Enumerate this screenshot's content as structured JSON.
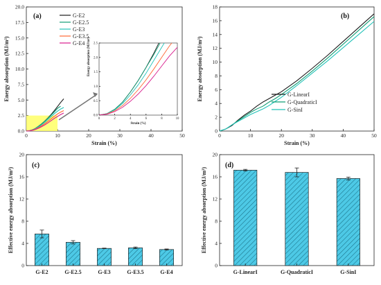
{
  "chart_data": [
    {
      "id": "a",
      "panel_label": "(a)",
      "type": "line",
      "xlabel": "Strain (%)",
      "ylabel": "Energy absorption (MJ/m³)",
      "xlim": [
        0,
        50
      ],
      "ylim": [
        0,
        20
      ],
      "xticks": [
        0,
        10,
        20,
        30,
        40,
        50
      ],
      "yticks": [
        0.0,
        2.5,
        5.0,
        7.5,
        10.0,
        12.5,
        15.0,
        17.5,
        20.0
      ],
      "ytick_labels": [
        "0.0",
        "2.5",
        "5.0",
        "7.5",
        "10.0",
        "12.5",
        "15.0",
        "17.5",
        "20.0"
      ],
      "grid": false,
      "legend_position": "top-left",
      "highlight_region": {
        "x": [
          0,
          10
        ],
        "y": [
          0,
          2.5
        ],
        "color": "#ffff66"
      },
      "series": [
        {
          "name": "G-E2",
          "color": "#1a1a1a",
          "x": [
            0,
            1,
            2,
            3,
            4,
            5,
            6,
            7,
            8,
            9,
            10,
            11,
            12
          ],
          "y": [
            0,
            0.05,
            0.2,
            0.45,
            0.8,
            1.2,
            1.65,
            2.15,
            2.7,
            3.3,
            3.95,
            4.6,
            5.2
          ]
        },
        {
          "name": "G-E2.5",
          "color": "#0f9d74",
          "x": [
            0,
            1,
            2,
            3,
            4,
            5,
            6,
            7,
            8,
            9,
            10,
            11
          ],
          "y": [
            0,
            0.05,
            0.2,
            0.45,
            0.8,
            1.2,
            1.65,
            2.1,
            2.6,
            3.1,
            3.65,
            4.0
          ]
        },
        {
          "name": "G-E3",
          "color": "#22c2b8",
          "x": [
            0,
            1,
            2,
            3,
            4,
            5,
            6,
            7,
            8,
            9,
            10,
            11,
            12
          ],
          "y": [
            0,
            0.05,
            0.18,
            0.4,
            0.7,
            1.05,
            1.45,
            1.9,
            2.35,
            2.8,
            3.2,
            3.55,
            3.8
          ]
        },
        {
          "name": "G-E3.5",
          "color": "#ff6633",
          "x": [
            0,
            1,
            2,
            3,
            4,
            5,
            6,
            7,
            8,
            9,
            10,
            11,
            12
          ],
          "y": [
            0,
            0.04,
            0.15,
            0.33,
            0.58,
            0.88,
            1.22,
            1.6,
            2.0,
            2.4,
            2.75,
            3.05,
            3.3
          ]
        },
        {
          "name": "G-E4",
          "color": "#d81b8c",
          "x": [
            0,
            1,
            2,
            3,
            4,
            5,
            6,
            7,
            8,
            9,
            10,
            11,
            12
          ],
          "y": [
            0,
            0.03,
            0.12,
            0.27,
            0.48,
            0.73,
            1.02,
            1.35,
            1.7,
            2.05,
            2.35,
            2.65,
            2.9
          ]
        }
      ],
      "inset": {
        "xlabel": "Strain (%)",
        "ylabel": "Energy absorption (MJ/m³)",
        "xlim": [
          0,
          10
        ],
        "ylim": [
          0,
          2.5
        ],
        "xticks": [
          0,
          2,
          4,
          6,
          8,
          10
        ],
        "yticks": [
          0.0,
          0.5,
          1.0,
          1.5,
          2.0,
          2.5
        ],
        "ytick_labels": [
          "0.0",
          "0.5",
          "1.0",
          "1.5",
          "2.0",
          "2.5"
        ]
      }
    },
    {
      "id": "b",
      "panel_label": "(b)",
      "type": "line",
      "xlabel": "Strain (%)",
      "ylabel": "Energy absorption (MJ/m³)",
      "xlim": [
        0,
        50
      ],
      "ylim": [
        0,
        18
      ],
      "xticks": [
        0,
        10,
        20,
        30,
        40,
        50
      ],
      "yticks": [
        0,
        2,
        4,
        6,
        8,
        10,
        12,
        14,
        16,
        18
      ],
      "ytick_labels": [
        "0",
        "2",
        "4",
        "6",
        "8",
        "10",
        "12",
        "14",
        "16",
        "18"
      ],
      "grid": false,
      "legend_position": "center-right",
      "series": [
        {
          "name": "G-LinearI",
          "color": "#1a1a1a",
          "x": [
            0,
            2,
            4,
            6,
            8,
            10,
            12,
            14,
            16,
            18,
            20,
            25,
            30,
            35,
            40,
            45,
            50
          ],
          "y": [
            0,
            0.3,
            0.8,
            1.6,
            2.3,
            2.9,
            3.6,
            4.2,
            4.7,
            5.2,
            5.7,
            7.3,
            9.1,
            11.0,
            13.0,
            15.0,
            17.0
          ]
        },
        {
          "name": "G-QuadraticI",
          "color": "#0f9d74",
          "x": [
            0,
            2,
            4,
            6,
            8,
            10,
            12,
            14,
            16,
            18,
            20,
            25,
            30,
            35,
            40,
            45,
            50
          ],
          "y": [
            0,
            0.3,
            0.9,
            1.5,
            2.1,
            2.7,
            3.2,
            3.6,
            4.2,
            4.7,
            5.3,
            6.9,
            8.7,
            10.6,
            12.6,
            14.6,
            16.6
          ]
        },
        {
          "name": "G-SinI",
          "color": "#22c2b8",
          "x": [
            0,
            2,
            4,
            6,
            8,
            10,
            12,
            14,
            16,
            18,
            20,
            25,
            30,
            35,
            40,
            45,
            50
          ],
          "y": [
            0,
            0.3,
            0.9,
            1.4,
            1.9,
            2.4,
            2.8,
            3.2,
            3.7,
            4.3,
            4.9,
            6.6,
            8.4,
            10.2,
            12.1,
            14.0,
            15.9
          ]
        }
      ]
    },
    {
      "id": "c",
      "panel_label": "(c)",
      "type": "bar",
      "ylabel": "Effective energy absorption (MJ/m³)",
      "ylim": [
        0,
        20
      ],
      "yticks": [
        0,
        4,
        8,
        12,
        16,
        20
      ],
      "ytick_labels": [
        "0",
        "4",
        "8",
        "12",
        "16",
        "20"
      ],
      "grid": false,
      "bar_color": "#4dc9e6",
      "hatch": "diagonal",
      "categories": [
        "G-E2",
        "G-E2.5",
        "G-E3",
        "G-E3.5",
        "G-E4"
      ],
      "values": [
        5.7,
        4.2,
        3.1,
        3.2,
        2.9
      ],
      "errors": [
        0.7,
        0.3,
        0.05,
        0.15,
        0.1
      ]
    },
    {
      "id": "d",
      "panel_label": "(d)",
      "type": "bar",
      "ylabel": "Effective energy absorption (MJ/m³)",
      "ylim": [
        0,
        20
      ],
      "yticks": [
        0,
        4,
        8,
        12,
        16,
        20
      ],
      "ytick_labels": [
        "0",
        "4",
        "8",
        "12",
        "16",
        "20"
      ],
      "grid": false,
      "bar_color": "#4dc9e6",
      "hatch": "diagonal",
      "categories": [
        "G-LinearI",
        "G-QuadraticI",
        "G-SinI"
      ],
      "values": [
        17.2,
        16.8,
        15.7
      ],
      "errors": [
        0.15,
        0.8,
        0.25
      ]
    }
  ]
}
